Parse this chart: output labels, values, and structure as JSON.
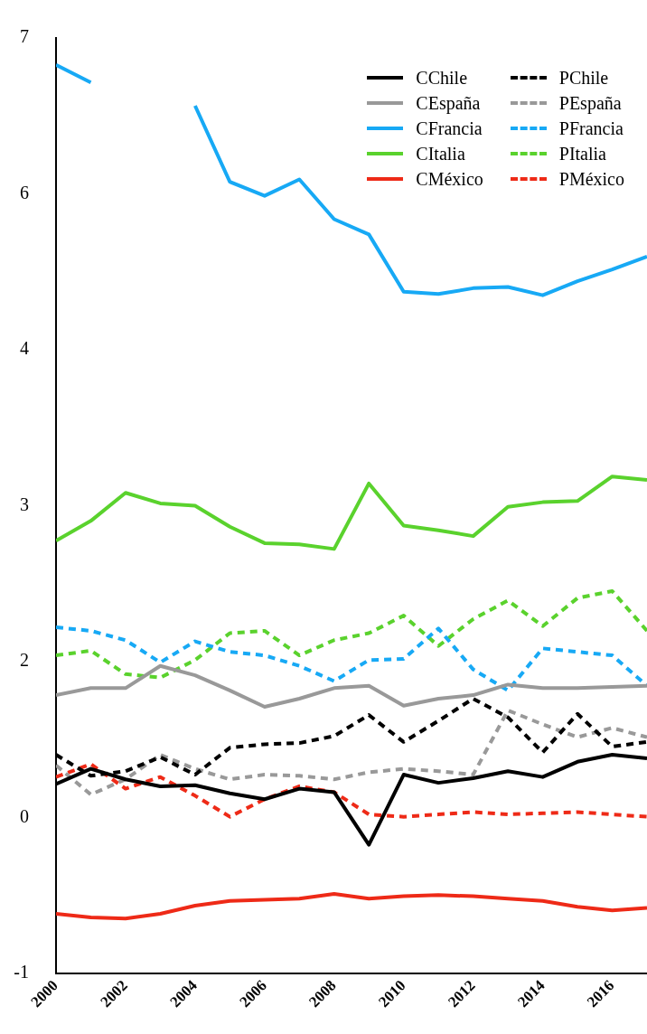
{
  "chart_data": {
    "type": "line",
    "x": [
      2000,
      2001,
      2002,
      2003,
      2004,
      2005,
      2006,
      2007,
      2008,
      2009,
      2010,
      2011,
      2012,
      2013,
      2014,
      2015,
      2016,
      2017
    ],
    "xlim": [
      2000,
      2017
    ],
    "xticks": [
      2000,
      2002,
      2004,
      2006,
      2008,
      2010,
      2012,
      2014,
      2016
    ],
    "ylim": [
      -1,
      7
    ],
    "yticks": [
      {
        "value": -1,
        "label": "-1"
      },
      {
        "value": 0.3333,
        "label": "0"
      },
      {
        "value": 1.6667,
        "label": "2"
      },
      {
        "value": 3,
        "label": "3"
      },
      {
        "value": 4.3333,
        "label": "4"
      },
      {
        "value": 5.6667,
        "label": "6"
      },
      {
        "value": 7,
        "label": "7"
      }
    ],
    "grid": false,
    "legend": "top right",
    "marker": "none",
    "series": [
      {
        "name": "CChile",
        "color": "#000000",
        "line_style": "solid",
        "values": [
          0.62,
          0.75,
          0.66,
          0.6,
          0.61,
          0.54,
          0.49,
          0.58,
          0.55,
          0.1,
          0.7,
          0.63,
          0.67,
          0.73,
          0.68,
          0.81,
          0.87,
          0.84
        ]
      },
      {
        "name": "CEspaña",
        "color": "#999999",
        "line_style": "solid",
        "values": [
          1.38,
          1.44,
          1.44,
          1.63,
          1.55,
          1.42,
          1.28,
          1.35,
          1.44,
          1.46,
          1.29,
          1.35,
          1.38,
          1.47,
          1.44,
          1.44,
          1.45,
          1.46
        ]
      },
      {
        "name": "CFrancia",
        "color": "#17a9f5",
        "line_style": "solid",
        "values": [
          6.77,
          6.62,
          null,
          null,
          6.42,
          5.77,
          5.65,
          5.79,
          5.45,
          5.32,
          4.83,
          4.81,
          4.86,
          4.87,
          4.8,
          4.92,
          5.02,
          5.13
        ]
      },
      {
        "name": "CItalia",
        "color": "#5ad22d",
        "line_style": "solid",
        "values": [
          2.7,
          2.87,
          3.11,
          3.02,
          3.0,
          2.82,
          2.68,
          2.67,
          2.63,
          3.19,
          2.83,
          2.79,
          2.74,
          2.99,
          3.03,
          3.04,
          3.25,
          3.22
        ]
      },
      {
        "name": "CMéxico",
        "color": "#ee2a17",
        "line_style": "solid",
        "values": [
          -0.49,
          -0.52,
          -0.53,
          -0.49,
          -0.42,
          -0.38,
          -0.37,
          -0.36,
          -0.32,
          -0.36,
          -0.34,
          -0.33,
          -0.34,
          -0.36,
          -0.38,
          -0.43,
          -0.46,
          -0.44
        ]
      },
      {
        "name": "PChile",
        "color": "#000000",
        "line_style": "dashed",
        "values": [
          0.87,
          0.69,
          0.73,
          0.85,
          0.7,
          0.93,
          0.96,
          0.97,
          1.03,
          1.21,
          0.98,
          1.16,
          1.35,
          1.19,
          0.89,
          1.22,
          0.94,
          0.98
        ]
      },
      {
        "name": "PEspaña",
        "color": "#999999",
        "line_style": "dashed",
        "values": [
          0.78,
          0.53,
          0.66,
          0.87,
          0.75,
          0.66,
          0.7,
          0.69,
          0.66,
          0.72,
          0.75,
          0.73,
          0.7,
          1.25,
          1.13,
          1.02,
          1.1,
          1.02
        ]
      },
      {
        "name": "PFrancia",
        "color": "#17a9f5",
        "line_style": "dashed",
        "values": [
          1.96,
          1.93,
          1.85,
          1.66,
          1.84,
          1.75,
          1.72,
          1.63,
          1.5,
          1.68,
          1.69,
          1.95,
          1.6,
          1.42,
          1.78,
          1.75,
          1.72,
          1.46
        ]
      },
      {
        "name": "PItalia",
        "color": "#5ad22d",
        "line_style": "dashed",
        "values": [
          1.72,
          1.76,
          1.56,
          1.53,
          1.68,
          1.91,
          1.93,
          1.72,
          1.85,
          1.91,
          2.06,
          1.8,
          2.03,
          2.19,
          1.97,
          2.21,
          2.27,
          1.93
        ]
      },
      {
        "name": "PMéxico",
        "color": "#ee2a17",
        "line_style": "dashed",
        "values": [
          0.68,
          0.79,
          0.58,
          0.68,
          0.52,
          0.34,
          0.49,
          0.6,
          0.55,
          0.36,
          0.34,
          0.36,
          0.38,
          0.36,
          0.37,
          0.38,
          0.36,
          0.34
        ]
      }
    ]
  }
}
